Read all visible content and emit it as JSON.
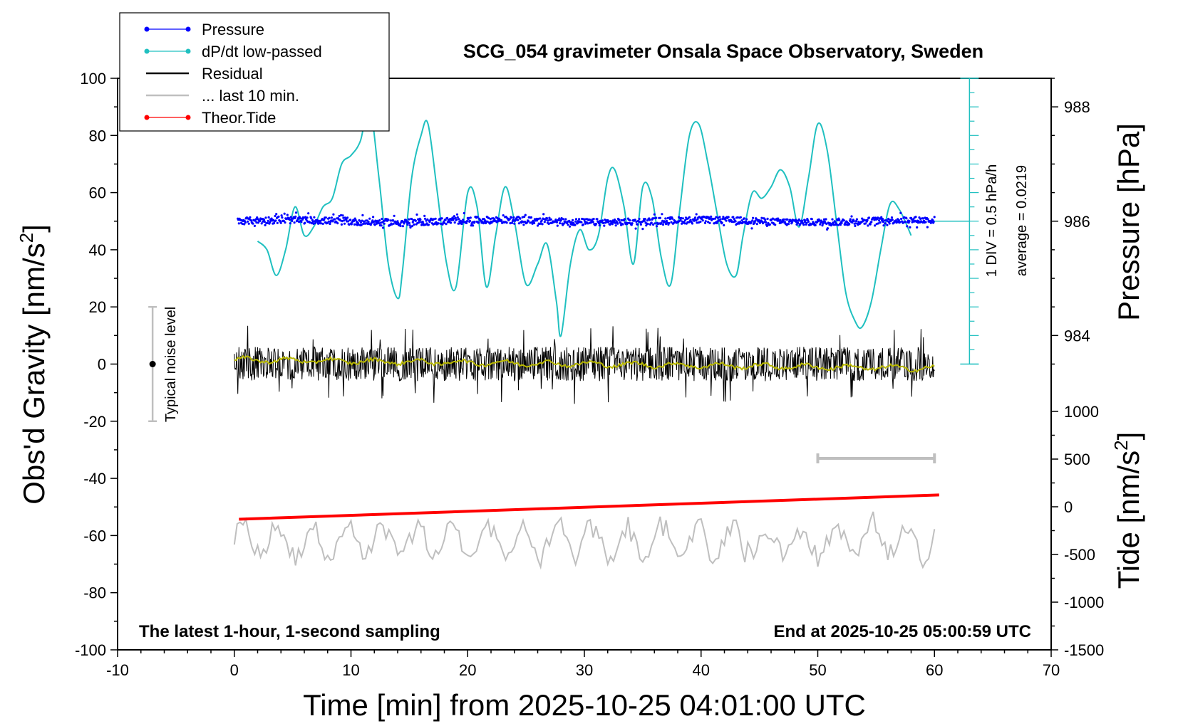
{
  "chart_data": {
    "type": "line",
    "title": "SCG_054 gravimeter Onsala Space Observatory, Sweden",
    "xlabel": "Time [min] from 2025-10-25 04:01:00 UTC",
    "ylabel": "Obs'd Gravity [nm/s",
    "ylabel_sup": "2",
    "ylabel_end": "]",
    "xlim": [
      -10,
      70
    ],
    "ylim": [
      -100,
      100
    ],
    "x_ticks": [
      -10,
      0,
      10,
      20,
      30,
      40,
      50,
      60,
      70
    ],
    "y_ticks": [
      -100,
      -80,
      -60,
      -40,
      -20,
      0,
      20,
      40,
      60,
      80,
      100
    ],
    "pressure_axis": {
      "label": "Pressure [hPa]",
      "ticks": [
        984,
        986,
        988
      ],
      "range_at_left": [
        {
          "hpa": 986,
          "gravity": 50
        }
      ],
      "hpa_per_gravity_unit": 0.05
    },
    "tide_axis": {
      "label": "Tide [nm/s",
      "label_sup": "2",
      "label_end": "]",
      "ticks": [
        1000,
        500,
        0,
        -500,
        -1000,
        -1500
      ],
      "tide_at_top": 1000,
      "tide_at_bottom": -1500
    },
    "dpdt_scale": {
      "label": "1 DIV = 0.5 hPa/h",
      "average_label": "average = 0.0219",
      "x": 63,
      "y_range": [
        0,
        100
      ],
      "baseline": 50
    },
    "noise_bar": {
      "label": "Typical noise level",
      "x": -7,
      "center": 0,
      "half_range": 20
    },
    "gray_scale_bar": {
      "x_range": [
        50,
        60
      ],
      "y": -33
    },
    "annotations": {
      "bottom_left": "The latest 1-hour, 1-second sampling",
      "bottom_right": "End at 2025-10-25 05:00:59 UTC"
    },
    "legend": {
      "placement": "top-left",
      "entries": [
        {
          "name": "Pressure",
          "color": "#0000ff",
          "style": "line-dot"
        },
        {
          "name": "dP/dt low-passed",
          "color": "#20c0c0",
          "style": "line-dot"
        },
        {
          "name": "Residual",
          "color": "#000000",
          "style": "line"
        },
        {
          "name": "... last 10 min.",
          "color": "#bfbfbf",
          "style": "line"
        },
        {
          "name": "Theor.Tide",
          "color": "#ff0000",
          "style": "line-dot"
        }
      ]
    },
    "series": [
      {
        "name": "dP/dt low-passed",
        "color": "#20c0c0",
        "x": [
          2.0,
          2.8,
          3.6,
          4.4,
          5.2,
          6.0,
          6.8,
          7.6,
          8.4,
          9.2,
          10.0,
          10.8,
          11.6,
          12.4,
          13.2,
          14.0,
          14.4,
          15.2,
          16.0,
          16.6,
          17.4,
          18.2,
          19.0,
          20.0,
          20.8,
          21.6,
          22.4,
          23.2,
          24.0,
          25.0,
          26.0,
          26.8,
          27.6,
          28.0,
          28.8,
          29.6,
          30.4,
          31.2,
          32.0,
          32.6,
          33.4,
          34.2,
          35.0,
          35.8,
          36.6,
          37.4,
          38.2,
          39.0,
          39.8,
          40.6,
          41.4,
          42.2,
          43.0,
          43.6,
          44.4,
          45.2,
          46.0,
          46.8,
          47.6,
          48.4,
          49.2,
          50.0,
          50.8,
          51.6,
          52.4,
          53.2,
          53.8,
          54.6,
          55.4,
          56.2,
          57.0,
          58.0
        ],
        "values": [
          43,
          40,
          31,
          40,
          55,
          45,
          48,
          55,
          58,
          70,
          73,
          78,
          90,
          65,
          35,
          23,
          32,
          65,
          80,
          84,
          60,
          35,
          27,
          60,
          55,
          27,
          45,
          62,
          50,
          28,
          35,
          42,
          22,
          10,
          35,
          47,
          40,
          45,
          65,
          68,
          55,
          35,
          62,
          58,
          37,
          28,
          55,
          80,
          84,
          70,
          52,
          35,
          31,
          45,
          60,
          58,
          62,
          68,
          62,
          48,
          65,
          84,
          75,
          50,
          25,
          15,
          13,
          22,
          40,
          56,
          54,
          45
        ]
      },
      {
        "name": "Theor.Tide",
        "color": "#ff0000",
        "x": [
          0.4,
          60.4
        ],
        "values": [
          -54.3,
          -45.8
        ]
      }
    ],
    "residual_band": {
      "name": "Residual",
      "color": "#000000",
      "x_range": [
        0,
        60
      ],
      "center": 0,
      "typical_amplitude": 5,
      "max_amplitude": 14
    },
    "residual_smooth": {
      "color": "#b8b800",
      "x_range": [
        0,
        60
      ],
      "start": 1.5,
      "end": -1.5
    },
    "pressure_scatter": {
      "name": "Pressure",
      "color": "#0000ff",
      "x_range": [
        0,
        60
      ],
      "center": 50,
      "spread": 1.2
    },
    "last10_trace": {
      "name": "... last 10 min.",
      "color": "#bfbfbf",
      "x_range": [
        0,
        60
      ],
      "center": -62,
      "amplitude": 6
    }
  }
}
